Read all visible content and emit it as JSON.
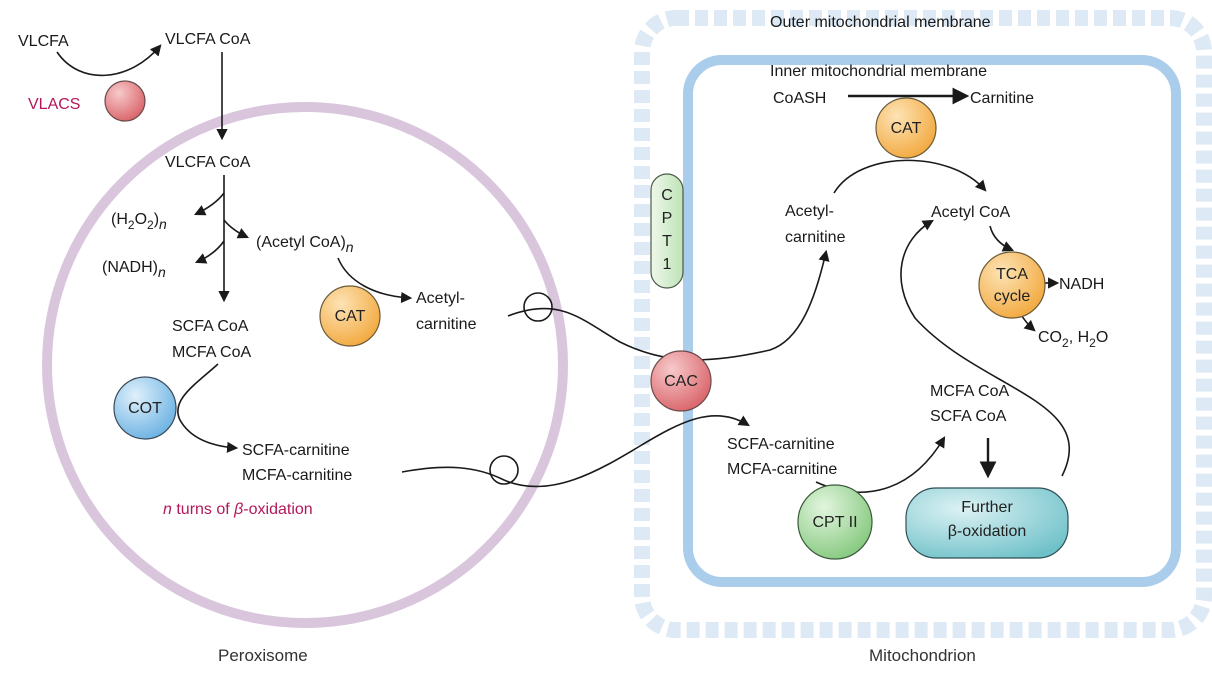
{
  "colors": {
    "peroxisome_membrane": "#d9c6dd",
    "mito_dashes": "#dce9f4",
    "inner_membrane": "#a9cdea",
    "enzyme_pink": "#e07d80",
    "enzyme_orange": "#f7bf6a",
    "enzyme_blue": "#8fc5ea",
    "enzyme_green": "#9fd69a",
    "enzyme_teal": "#8ed0d6",
    "highlight_text": "#b2185a"
  },
  "compartments": {
    "peroxisome_label": "Peroxisome",
    "mitochondrion_label": "Mitochondrion",
    "outer_membrane_label": "Outer mitochondrial membrane",
    "inner_membrane_label": "Inner mitochondrial membrane"
  },
  "enzymes": {
    "vlacs": "VLACS",
    "cat_peroxisome": "CAT",
    "cot": "COT",
    "cpt1": [
      "C",
      "P",
      "T",
      "1"
    ],
    "cac": "CAC",
    "cat_mito": "CAT",
    "tca": [
      "TCA",
      "cycle"
    ],
    "cpt2": "CPT II",
    "further_beta": [
      "Further",
      "β-oxidation"
    ]
  },
  "peroxisome": {
    "vlcfa": "VLCFA",
    "vlcfa_coa_top": "VLCFA CoA",
    "vlcfa_coa": "VLCFA CoA",
    "h2o2": {
      "open": "(H",
      "sub1": "2",
      "mid": "O",
      "sub2": "2",
      "close": ")",
      "n": "n"
    },
    "acetyl_coa_n": {
      "text": "(Acetyl CoA)",
      "n": "n"
    },
    "nadh_n": {
      "text": "(NADH)",
      "n": "n"
    },
    "short_medium_coa": [
      "SCFA CoA",
      "MCFA CoA"
    ],
    "acetylcarnitine": [
      "Acetyl-",
      "carnitine"
    ],
    "carnitine_esters": [
      "SCFA-carnitine",
      "MCFA-carnitine"
    ],
    "turns": {
      "n": "n",
      "text": " turns of ",
      "beta": "β",
      "suffix": "-oxidation"
    }
  },
  "mitochondrion": {
    "coash": "CoASH",
    "carnitine": "Carnitine",
    "acetylcarnitine": [
      "Acetyl-",
      "carnitine"
    ],
    "acetyl_coa": "Acetyl CoA",
    "nadh": "NADH",
    "co2_h2o": {
      "co": "CO",
      "sub1": "2",
      "mid": ", H",
      "sub2": "2",
      "end": "O"
    },
    "medium_short_coa": [
      "MCFA CoA",
      "SCFA CoA"
    ],
    "carnitine_esters": [
      "SCFA-carnitine",
      "MCFA-carnitine"
    ]
  }
}
